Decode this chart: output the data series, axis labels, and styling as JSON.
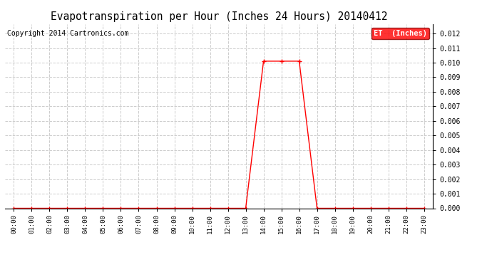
{
  "title": "Evapotranspiration per Hour (Inches 24 Hours) 20140412",
  "copyright": "Copyright 2014 Cartronics.com",
  "legend_label": "ET  (Inches)",
  "legend_bg": "#ff0000",
  "legend_text_color": "#ffffff",
  "line_color": "#ff0000",
  "marker": "+",
  "marker_size": 4,
  "marker_edge_width": 1.0,
  "line_width": 1.0,
  "bg_color": "#ffffff",
  "grid_color": "#cccccc",
  "grid_style": "--",
  "ylim": [
    0.0,
    0.01265
  ],
  "yticks": [
    0.0,
    0.001,
    0.002,
    0.003,
    0.004,
    0.005,
    0.006,
    0.007,
    0.008,
    0.009,
    0.01,
    0.011,
    0.012
  ],
  "hours": [
    "00:00",
    "01:00",
    "02:00",
    "03:00",
    "04:00",
    "05:00",
    "06:00",
    "07:00",
    "08:00",
    "09:00",
    "10:00",
    "11:00",
    "12:00",
    "13:00",
    "14:00",
    "15:00",
    "16:00",
    "17:00",
    "18:00",
    "19:00",
    "20:00",
    "21:00",
    "22:00",
    "23:00"
  ],
  "values": [
    0.0,
    0.0,
    0.0,
    0.0,
    0.0,
    0.0,
    0.0,
    0.0,
    0.0,
    0.0,
    0.0,
    0.0,
    0.0,
    0.0,
    0.0101,
    0.0101,
    0.0101,
    0.0,
    0.0,
    0.0,
    0.0,
    0.0,
    0.0,
    0.0
  ],
  "title_fontsize": 10.5,
  "tick_fontsize": 6.5,
  "ytick_fontsize": 7,
  "copyright_fontsize": 7,
  "legend_fontsize": 7.5
}
